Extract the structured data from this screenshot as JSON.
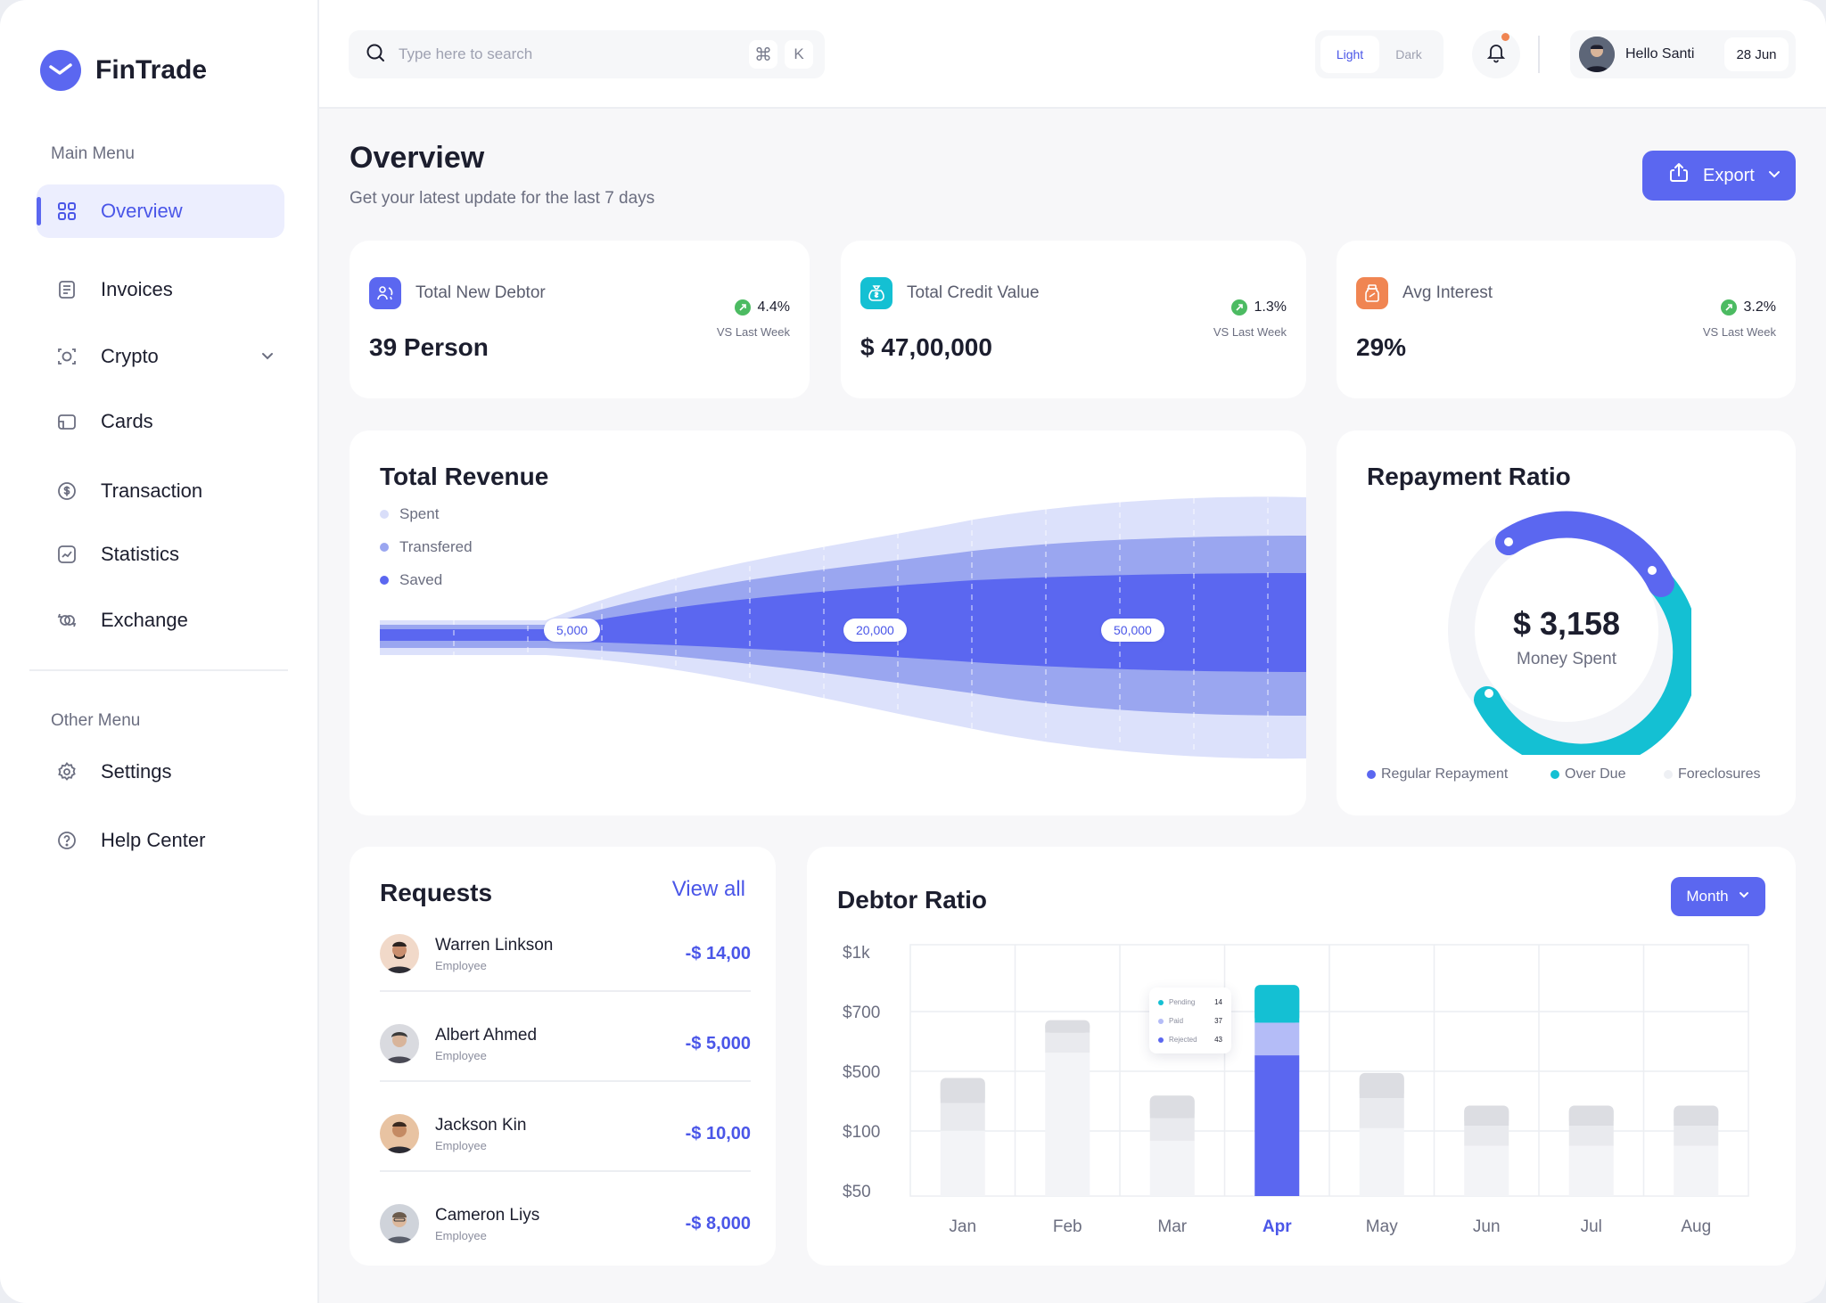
{
  "brand": {
    "name": "FinTrade"
  },
  "sidebar": {
    "main_heading": "Main Menu",
    "main_items": [
      {
        "label": "Overview",
        "icon": "grid-icon",
        "active": true
      },
      {
        "label": "Invoices",
        "icon": "document-icon"
      },
      {
        "label": "Crypto",
        "icon": "crypto-icon",
        "has_chevron": true
      },
      {
        "label": "Cards",
        "icon": "card-icon"
      },
      {
        "label": "Transaction",
        "icon": "dollar-circle-icon"
      },
      {
        "label": "Statistics",
        "icon": "chart-icon"
      },
      {
        "label": "Exchange",
        "icon": "exchange-icon"
      }
    ],
    "other_heading": "Other Menu",
    "other_items": [
      {
        "label": "Settings",
        "icon": "gear-icon"
      },
      {
        "label": "Help Center",
        "icon": "help-icon"
      }
    ]
  },
  "topbar": {
    "search_placeholder": "Type here to search",
    "shortcut_mod": "⌘",
    "shortcut_key": "K",
    "theme_light": "Light",
    "theme_dark": "Dark",
    "greeting": "Hello Santi",
    "date": "28 Jun"
  },
  "page": {
    "title": "Overview",
    "subtitle": "Get your latest update for the last 7 days",
    "export_label": "Export"
  },
  "stats": [
    {
      "label": "Total  New Debtor",
      "value": "39 Person",
      "trend": "4.4%",
      "trend_note": "VS Last Week",
      "icon_color": "#5b67f0"
    },
    {
      "label": "Total Credit Value",
      "value": "$ 47,00,000",
      "trend": "1.3%",
      "trend_note": "VS Last Week",
      "icon_color": "#14c0d3"
    },
    {
      "label": "Avg Interest",
      "value": "29%",
      "trend": "3.2%",
      "trend_note": "VS Last Week",
      "icon_color": "#f08552"
    }
  ],
  "revenue": {
    "title": "Total Revenue",
    "legend": [
      {
        "name": "Spent",
        "color": "#d9def9"
      },
      {
        "name": "Transfered",
        "color": "#9aa6f0"
      },
      {
        "name": "Saved",
        "color": "#5b67f0"
      }
    ],
    "markers": [
      "5,000",
      "20,000",
      "50,000"
    ]
  },
  "repayment": {
    "title": "Repayment Ratio",
    "amount": "$ 3,158",
    "amount_label": "Money Spent",
    "legend": [
      {
        "name": "Regular Repayment",
        "color": "#5b67f0"
      },
      {
        "name": "Over Due",
        "color": "#14c0d3"
      },
      {
        "name": "Foreclosures",
        "color": "#eef0f4"
      }
    ]
  },
  "requests": {
    "title": "Requests",
    "view_all": "View all",
    "items": [
      {
        "name": "Warren Linkson",
        "role": "Employee",
        "amount": "-$ 14,00"
      },
      {
        "name": "Albert Ahmed",
        "role": "Employee",
        "amount": "-$ 5,000"
      },
      {
        "name": "Jackson Kin",
        "role": "Employee",
        "amount": "-$ 10,00"
      },
      {
        "name": "Cameron Liys",
        "role": "Employee",
        "amount": "-$ 8,000"
      }
    ]
  },
  "debtor": {
    "title": "Debtor Ratio",
    "period_label": "Month",
    "tooltip": [
      {
        "name": "Pending",
        "value": "14",
        "color": "#14c0d3"
      },
      {
        "name": "Paid",
        "value": "37",
        "color": "#b4bcf7"
      },
      {
        "name": "Rejected",
        "value": "43",
        "color": "#5b67f0"
      }
    ]
  },
  "chart_data": {
    "type": "bar",
    "title": "Debtor Ratio",
    "categories": [
      "Jan",
      "Feb",
      "Mar",
      "Apr",
      "May",
      "Jun",
      "Jul",
      "Aug"
    ],
    "highlight": "Apr",
    "y_ticks": [
      "$1k",
      "$700",
      "$500",
      "$100",
      "$50"
    ],
    "series": [
      {
        "name": "Rejected",
        "values": [
          0.26,
          0.57,
          0.22,
          0.56,
          0.27,
          0.2,
          0.2,
          0.2
        ]
      },
      {
        "name": "Paid",
        "values": [
          0.11,
          0.08,
          0.09,
          0.13,
          0.12,
          0.08,
          0.08,
          0.08
        ]
      },
      {
        "name": "Pending",
        "values": [
          0.1,
          0.05,
          0.09,
          0.15,
          0.1,
          0.08,
          0.08,
          0.08
        ]
      }
    ],
    "grid": true
  }
}
